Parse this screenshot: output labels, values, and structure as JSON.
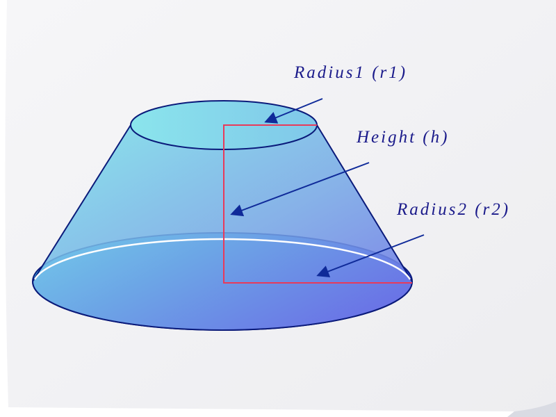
{
  "diagram": {
    "labels": {
      "radius1": "Radius1 (r1)",
      "height": "Height (h)",
      "radius2": "Radius2 (r2)"
    },
    "colors": {
      "outline": "#0a1a7a",
      "arrow": "#0f2a99",
      "height_marker": "#e83a5a",
      "fill_light": "#6fe0ea",
      "fill_dark": "#3d43e6",
      "paper": "#f3f3f5"
    }
  }
}
